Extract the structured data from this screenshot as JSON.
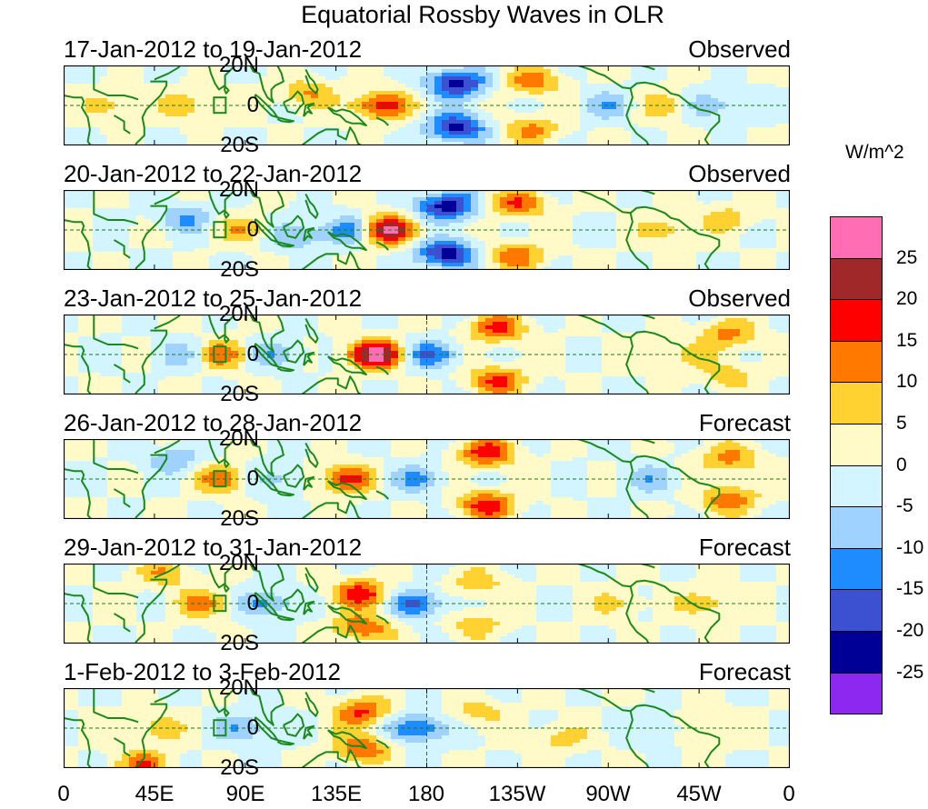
{
  "title": "Equatorial Rossby Waves in OLR",
  "panels": [
    {
      "date": "17-Jan-2012 to 19-Jan-2012",
      "status": "Observed"
    },
    {
      "date": "20-Jan-2012 to 22-Jan-2012",
      "status": "Observed"
    },
    {
      "date": "23-Jan-2012 to 25-Jan-2012",
      "status": "Observed"
    },
    {
      "date": "26-Jan-2012 to 28-Jan-2012",
      "status": "Forecast"
    },
    {
      "date": "29-Jan-2012 to 31-Jan-2012",
      "status": "Forecast"
    },
    {
      "date": "1-Feb-2012 to 3-Feb-2012",
      "status": "Forecast"
    }
  ],
  "lat_labels": [
    "20N",
    "0",
    "20S"
  ],
  "lon_labels": [
    "0",
    "45E",
    "90E",
    "135E",
    "180",
    "135W",
    "90W",
    "45W",
    "0"
  ],
  "colorbar": {
    "units": "W/m^2",
    "tick_labels": [
      "25",
      "20",
      "15",
      "10",
      "5",
      "0",
      "-5",
      "-10",
      "-15",
      "-20",
      "-25"
    ],
    "colors": [
      "#ff6eb4",
      "#a02828",
      "#ff0000",
      "#ff7800",
      "#ffd232",
      "#fffac8",
      "#d2f5ff",
      "#a0d2ff",
      "#1e8cff",
      "#3c50d2",
      "#000096",
      "#8c28f0"
    ]
  },
  "chart_data": {
    "type": "heatmap",
    "variable": "OLR anomaly (Equatorial Rossby waves)",
    "units": "W/m^2",
    "levels": [
      -25,
      -20,
      -15,
      -10,
      -5,
      0,
      5,
      10,
      15,
      20,
      25
    ],
    "lat_range": [
      -20,
      20
    ],
    "lon_range": [
      0,
      360
    ],
    "anomaly_centers": [
      [
        {
          "lon": 25,
          "lat": 0,
          "value": 7
        },
        {
          "lon": 63,
          "lat": 0,
          "value": 8
        },
        {
          "lon": 120,
          "lat": 6,
          "value": 10
        },
        {
          "lon": 157,
          "lat": 0,
          "value": 18
        },
        {
          "lon": 195,
          "lat": 11,
          "value": -23
        },
        {
          "lon": 195,
          "lat": -11,
          "value": -22
        },
        {
          "lon": 232,
          "lat": 12,
          "value": 13
        },
        {
          "lon": 232,
          "lat": -12,
          "value": 11
        },
        {
          "lon": 300,
          "lat": 0,
          "value": 9
        },
        {
          "lon": 270,
          "lat": 0,
          "value": -8
        },
        {
          "lon": 320,
          "lat": 0,
          "value": -10
        }
      ],
      [
        {
          "lon": 90,
          "lat": 0,
          "value": 9
        },
        {
          "lon": 115,
          "lat": -3,
          "value": -10
        },
        {
          "lon": 143,
          "lat": 0,
          "value": -15
        },
        {
          "lon": 160,
          "lat": 0,
          "value": 27
        },
        {
          "lon": 190,
          "lat": 12,
          "value": -24
        },
        {
          "lon": 190,
          "lat": -12,
          "value": -23
        },
        {
          "lon": 225,
          "lat": 13,
          "value": 15
        },
        {
          "lon": 225,
          "lat": -13,
          "value": 13
        },
        {
          "lon": 60,
          "lat": 6,
          "value": -10
        },
        {
          "lon": 300,
          "lat": 0,
          "value": 8
        },
        {
          "lon": 330,
          "lat": 6,
          "value": 7
        }
      ],
      [
        {
          "lon": 79,
          "lat": 0,
          "value": 14
        },
        {
          "lon": 105,
          "lat": 0,
          "value": -10
        },
        {
          "lon": 155,
          "lat": 0,
          "value": 28
        },
        {
          "lon": 182,
          "lat": 0,
          "value": -15
        },
        {
          "lon": 215,
          "lat": 13,
          "value": 16
        },
        {
          "lon": 215,
          "lat": -13,
          "value": 16
        },
        {
          "lon": 60,
          "lat": 0,
          "value": -8
        },
        {
          "lon": 305,
          "lat": 0,
          "value": 6
        },
        {
          "lon": 330,
          "lat": 10,
          "value": 12
        },
        {
          "lon": 330,
          "lat": -10,
          "value": 8
        }
      ],
      [
        {
          "lon": 80,
          "lat": 0,
          "value": 13
        },
        {
          "lon": 140,
          "lat": 0,
          "value": 17
        },
        {
          "lon": 175,
          "lat": 0,
          "value": -10
        },
        {
          "lon": 210,
          "lat": 13,
          "value": 18
        },
        {
          "lon": 210,
          "lat": -13,
          "value": 18
        },
        {
          "lon": 55,
          "lat": 10,
          "value": -9
        },
        {
          "lon": 105,
          "lat": 0,
          "value": -8
        },
        {
          "lon": 330,
          "lat": 10,
          "value": 12
        },
        {
          "lon": 330,
          "lat": -10,
          "value": 14
        },
        {
          "lon": 290,
          "lat": 0,
          "value": -8
        }
      ],
      [
        {
          "lon": 70,
          "lat": 0,
          "value": 12
        },
        {
          "lon": 100,
          "lat": 0,
          "value": -13
        },
        {
          "lon": 148,
          "lat": 5,
          "value": 18
        },
        {
          "lon": 148,
          "lat": -12,
          "value": 15
        },
        {
          "lon": 175,
          "lat": 0,
          "value": -16
        },
        {
          "lon": 205,
          "lat": 10,
          "value": 8
        },
        {
          "lon": 205,
          "lat": -10,
          "value": 8
        },
        {
          "lon": 50,
          "lat": 15,
          "value": 9
        },
        {
          "lon": 320,
          "lat": 0,
          "value": 9
        },
        {
          "lon": 275,
          "lat": 0,
          "value": 6
        }
      ],
      [
        {
          "lon": 45,
          "lat": 0,
          "value": 8
        },
        {
          "lon": 90,
          "lat": 0,
          "value": -10
        },
        {
          "lon": 148,
          "lat": 8,
          "value": 16
        },
        {
          "lon": 148,
          "lat": -10,
          "value": 15
        },
        {
          "lon": 175,
          "lat": 0,
          "value": -17
        },
        {
          "lon": 40,
          "lat": -18,
          "value": 14
        },
        {
          "lon": 205,
          "lat": 8,
          "value": 7
        },
        {
          "lon": 245,
          "lat": -5,
          "value": 7
        },
        {
          "lon": 320,
          "lat": 0,
          "value": 7
        },
        {
          "lon": 295,
          "lat": 0,
          "value": -6
        }
      ]
    ]
  }
}
